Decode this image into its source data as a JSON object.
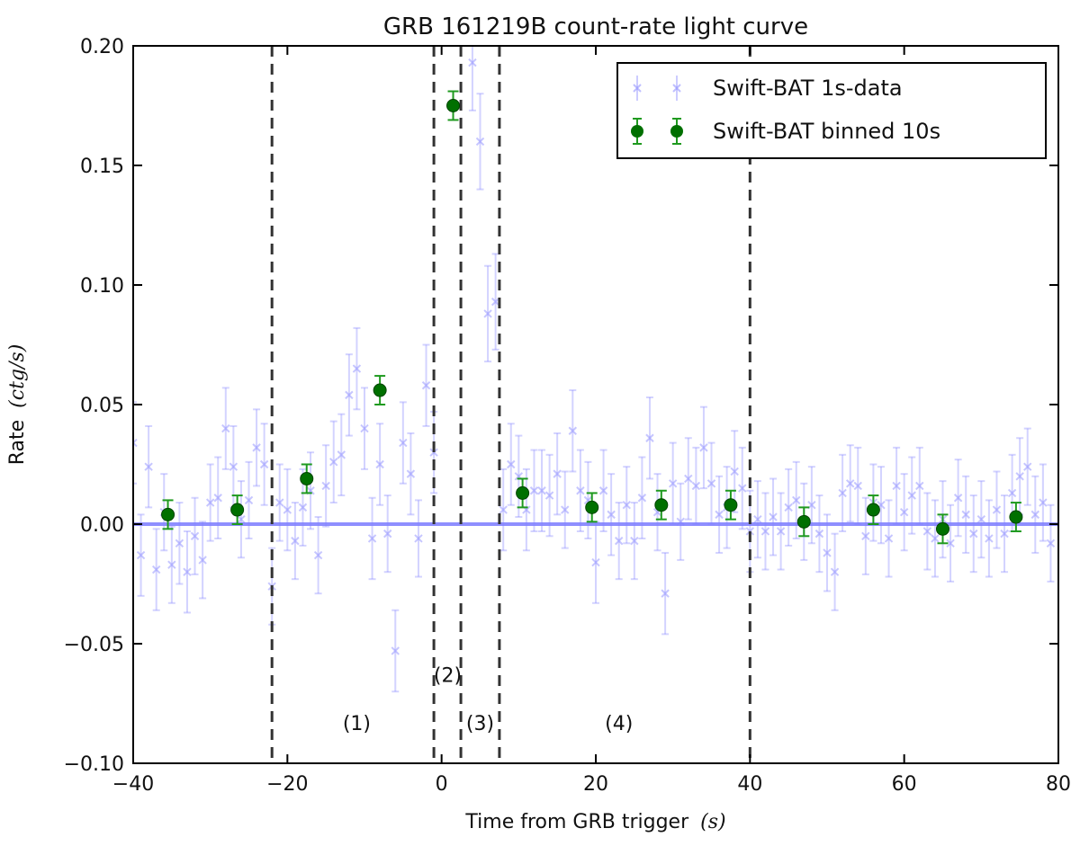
{
  "chart_data": {
    "type": "scatter",
    "title": "GRB 161219B count-rate light curve",
    "xlabel": "Time from GRB trigger",
    "xlabel_unit": "(s)",
    "ylabel": "Rate",
    "ylabel_unit": "(ctg/s)",
    "xlim": [
      -40,
      80
    ],
    "ylim": [
      -0.1,
      0.2
    ],
    "x_ticks": [
      "−40",
      "−20",
      "0",
      "20",
      "40",
      "60",
      "80"
    ],
    "x_tick_values": [
      -40,
      -20,
      0,
      20,
      40,
      60,
      80
    ],
    "y_ticks": [
      "−0.10",
      "−0.05",
      "0.00",
      "0.05",
      "0.10",
      "0.15",
      "0.20"
    ],
    "y_tick_values": [
      -0.1,
      -0.05,
      0.0,
      0.05,
      0.1,
      0.15,
      0.2
    ],
    "grid": false,
    "legend_position": "top-right",
    "baseline": 0.0,
    "baseline_color": "#7b7bff",
    "region_lines": [
      -22,
      -1,
      2.5,
      7.5,
      40
    ],
    "region_labels": [
      {
        "text": "(1)",
        "x": -11,
        "y": -0.086
      },
      {
        "text": "(2)",
        "x": 0.8,
        "y": -0.066
      },
      {
        "text": "(3)",
        "x": 5,
        "y": -0.086
      },
      {
        "text": "(4)",
        "x": 23,
        "y": -0.086
      }
    ],
    "series": [
      {
        "name": "Swift-BAT 1s-data",
        "color": "#8080ff",
        "marker": "x",
        "points": [
          {
            "x": -40,
            "y": 0.034,
            "err": 0.017
          },
          {
            "x": -39,
            "y": -0.013,
            "err": 0.017
          },
          {
            "x": -38,
            "y": 0.024,
            "err": 0.017
          },
          {
            "x": -37,
            "y": -0.019,
            "err": 0.017
          },
          {
            "x": -36,
            "y": 0.005,
            "err": 0.016
          },
          {
            "x": -35,
            "y": -0.017,
            "err": 0.016
          },
          {
            "x": -34,
            "y": -0.008,
            "err": 0.017
          },
          {
            "x": -33,
            "y": -0.02,
            "err": 0.017
          },
          {
            "x": -32,
            "y": -0.005,
            "err": 0.016
          },
          {
            "x": -31,
            "y": -0.015,
            "err": 0.016
          },
          {
            "x": -30,
            "y": 0.009,
            "err": 0.016
          },
          {
            "x": -29,
            "y": 0.011,
            "err": 0.017
          },
          {
            "x": -28,
            "y": 0.04,
            "err": 0.017
          },
          {
            "x": -27,
            "y": 0.024,
            "err": 0.017
          },
          {
            "x": -26,
            "y": 0.002,
            "err": 0.016
          },
          {
            "x": -25,
            "y": 0.01,
            "err": 0.016
          },
          {
            "x": -24,
            "y": 0.032,
            "err": 0.016
          },
          {
            "x": -23,
            "y": 0.025,
            "err": 0.017
          },
          {
            "x": -22,
            "y": -0.026,
            "err": 0.016
          },
          {
            "x": -21,
            "y": 0.009,
            "err": 0.016
          },
          {
            "x": -20,
            "y": 0.006,
            "err": 0.017
          },
          {
            "x": -19,
            "y": -0.007,
            "err": 0.016
          },
          {
            "x": -18,
            "y": 0.007,
            "err": 0.016
          },
          {
            "x": -17,
            "y": 0.014,
            "err": 0.016
          },
          {
            "x": -16,
            "y": -0.013,
            "err": 0.016
          },
          {
            "x": -15,
            "y": 0.016,
            "err": 0.017
          },
          {
            "x": -14,
            "y": 0.026,
            "err": 0.017
          },
          {
            "x": -13,
            "y": 0.029,
            "err": 0.017
          },
          {
            "x": -12,
            "y": 0.054,
            "err": 0.017
          },
          {
            "x": -11,
            "y": 0.065,
            "err": 0.017
          },
          {
            "x": -10,
            "y": 0.04,
            "err": 0.017
          },
          {
            "x": -9,
            "y": -0.006,
            "err": 0.017
          },
          {
            "x": -8,
            "y": 0.025,
            "err": 0.017
          },
          {
            "x": -7,
            "y": -0.004,
            "err": 0.016
          },
          {
            "x": -6,
            "y": -0.053,
            "err": 0.017
          },
          {
            "x": -5,
            "y": 0.034,
            "err": 0.017
          },
          {
            "x": -4,
            "y": 0.021,
            "err": 0.017
          },
          {
            "x": -3,
            "y": -0.006,
            "err": 0.016
          },
          {
            "x": -2,
            "y": 0.058,
            "err": 0.017
          },
          {
            "x": -1,
            "y": 0.03,
            "err": 0.017
          },
          {
            "x": 4,
            "y": 0.193,
            "err": 0.02
          },
          {
            "x": 5,
            "y": 0.16,
            "err": 0.02
          },
          {
            "x": 6,
            "y": 0.088,
            "err": 0.02
          },
          {
            "x": 7,
            "y": 0.093,
            "err": 0.02
          },
          {
            "x": 8,
            "y": 0.006,
            "err": 0.017
          },
          {
            "x": 9,
            "y": 0.025,
            "err": 0.017
          },
          {
            "x": 10,
            "y": 0.02,
            "err": 0.017
          },
          {
            "x": 11,
            "y": 0.006,
            "err": 0.017
          },
          {
            "x": 12,
            "y": 0.014,
            "err": 0.017
          },
          {
            "x": 13,
            "y": 0.014,
            "err": 0.017
          },
          {
            "x": 14,
            "y": 0.012,
            "err": 0.017
          },
          {
            "x": 15,
            "y": 0.021,
            "err": 0.017
          },
          {
            "x": 16,
            "y": 0.006,
            "err": 0.016
          },
          {
            "x": 17,
            "y": 0.039,
            "err": 0.017
          },
          {
            "x": 18,
            "y": 0.014,
            "err": 0.017
          },
          {
            "x": 19,
            "y": 0.01,
            "err": 0.016
          },
          {
            "x": 20,
            "y": -0.016,
            "err": 0.017
          },
          {
            "x": 21,
            "y": 0.014,
            "err": 0.017
          },
          {
            "x": 22,
            "y": 0.004,
            "err": 0.017
          },
          {
            "x": 23,
            "y": -0.007,
            "err": 0.016
          },
          {
            "x": 24,
            "y": 0.008,
            "err": 0.016
          },
          {
            "x": 25,
            "y": -0.007,
            "err": 0.016
          },
          {
            "x": 26,
            "y": 0.011,
            "err": 0.017
          },
          {
            "x": 27,
            "y": 0.036,
            "err": 0.017
          },
          {
            "x": 28,
            "y": 0.005,
            "err": 0.016
          },
          {
            "x": 29,
            "y": -0.029,
            "err": 0.017
          },
          {
            "x": 30,
            "y": 0.017,
            "err": 0.017
          },
          {
            "x": 31,
            "y": 0.001,
            "err": 0.016
          },
          {
            "x": 32,
            "y": 0.019,
            "err": 0.017
          },
          {
            "x": 33,
            "y": 0.016,
            "err": 0.016
          },
          {
            "x": 34,
            "y": 0.032,
            "err": 0.017
          },
          {
            "x": 35,
            "y": 0.017,
            "err": 0.017
          },
          {
            "x": 36,
            "y": 0.004,
            "err": 0.016
          },
          {
            "x": 37,
            "y": 0.007,
            "err": 0.017
          },
          {
            "x": 38,
            "y": 0.022,
            "err": 0.017
          },
          {
            "x": 39,
            "y": 0.015,
            "err": 0.017
          },
          {
            "x": 40,
            "y": -0.003,
            "err": 0.017
          },
          {
            "x": 41,
            "y": 0.002,
            "err": 0.016
          },
          {
            "x": 42,
            "y": -0.003,
            "err": 0.016
          },
          {
            "x": 43,
            "y": 0.003,
            "err": 0.016
          },
          {
            "x": 44,
            "y": -0.003,
            "err": 0.016
          },
          {
            "x": 45,
            "y": 0.007,
            "err": 0.016
          },
          {
            "x": 46,
            "y": 0.01,
            "err": 0.016
          },
          {
            "x": 47,
            "y": 0.001,
            "err": 0.016
          },
          {
            "x": 48,
            "y": 0.008,
            "err": 0.016
          },
          {
            "x": 49,
            "y": -0.004,
            "err": 0.016
          },
          {
            "x": 50,
            "y": -0.012,
            "err": 0.016
          },
          {
            "x": 51,
            "y": -0.02,
            "err": 0.016
          },
          {
            "x": 52,
            "y": 0.013,
            "err": 0.016
          },
          {
            "x": 53,
            "y": 0.017,
            "err": 0.016
          },
          {
            "x": 54,
            "y": 0.016,
            "err": 0.016
          },
          {
            "x": 55,
            "y": -0.005,
            "err": 0.016
          },
          {
            "x": 56,
            "y": 0.009,
            "err": 0.016
          },
          {
            "x": 57,
            "y": 0.008,
            "err": 0.016
          },
          {
            "x": 58,
            "y": -0.006,
            "err": 0.016
          },
          {
            "x": 59,
            "y": 0.016,
            "err": 0.016
          },
          {
            "x": 60,
            "y": 0.005,
            "err": 0.016
          },
          {
            "x": 61,
            "y": 0.012,
            "err": 0.016
          },
          {
            "x": 62,
            "y": 0.016,
            "err": 0.016
          },
          {
            "x": 63,
            "y": -0.003,
            "err": 0.016
          },
          {
            "x": 64,
            "y": -0.006,
            "err": 0.016
          },
          {
            "x": 65,
            "y": 0.002,
            "err": 0.016
          },
          {
            "x": 66,
            "y": -0.008,
            "err": 0.016
          },
          {
            "x": 67,
            "y": 0.011,
            "err": 0.016
          },
          {
            "x": 68,
            "y": 0.004,
            "err": 0.016
          },
          {
            "x": 69,
            "y": -0.004,
            "err": 0.016
          },
          {
            "x": 70,
            "y": 0.002,
            "err": 0.016
          },
          {
            "x": 71,
            "y": -0.006,
            "err": 0.016
          },
          {
            "x": 72,
            "y": 0.006,
            "err": 0.016
          },
          {
            "x": 73,
            "y": -0.004,
            "err": 0.016
          },
          {
            "x": 74,
            "y": 0.013,
            "err": 0.016
          },
          {
            "x": 75,
            "y": 0.02,
            "err": 0.016
          },
          {
            "x": 76,
            "y": 0.024,
            "err": 0.016
          },
          {
            "x": 77,
            "y": 0.004,
            "err": 0.016
          },
          {
            "x": 78,
            "y": 0.009,
            "err": 0.016
          },
          {
            "x": 79,
            "y": -0.008,
            "err": 0.016
          }
        ]
      },
      {
        "name": "Swift-BAT binned 10s",
        "color": "#007000",
        "marker": "o",
        "points": [
          {
            "x": -35.5,
            "y": 0.004,
            "err": 0.006
          },
          {
            "x": -26.5,
            "y": 0.006,
            "err": 0.006
          },
          {
            "x": -17.5,
            "y": 0.019,
            "err": 0.006
          },
          {
            "x": -8.0,
            "y": 0.056,
            "err": 0.006
          },
          {
            "x": 1.5,
            "y": 0.175,
            "err": 0.006
          },
          {
            "x": 10.5,
            "y": 0.013,
            "err": 0.006
          },
          {
            "x": 19.5,
            "y": 0.007,
            "err": 0.006
          },
          {
            "x": 28.5,
            "y": 0.008,
            "err": 0.006
          },
          {
            "x": 37.5,
            "y": 0.008,
            "err": 0.006
          },
          {
            "x": 47.0,
            "y": 0.001,
            "err": 0.006
          },
          {
            "x": 56.0,
            "y": 0.006,
            "err": 0.006
          },
          {
            "x": 65.0,
            "y": -0.002,
            "err": 0.006
          },
          {
            "x": 74.5,
            "y": 0.003,
            "err": 0.006
          }
        ]
      }
    ]
  }
}
